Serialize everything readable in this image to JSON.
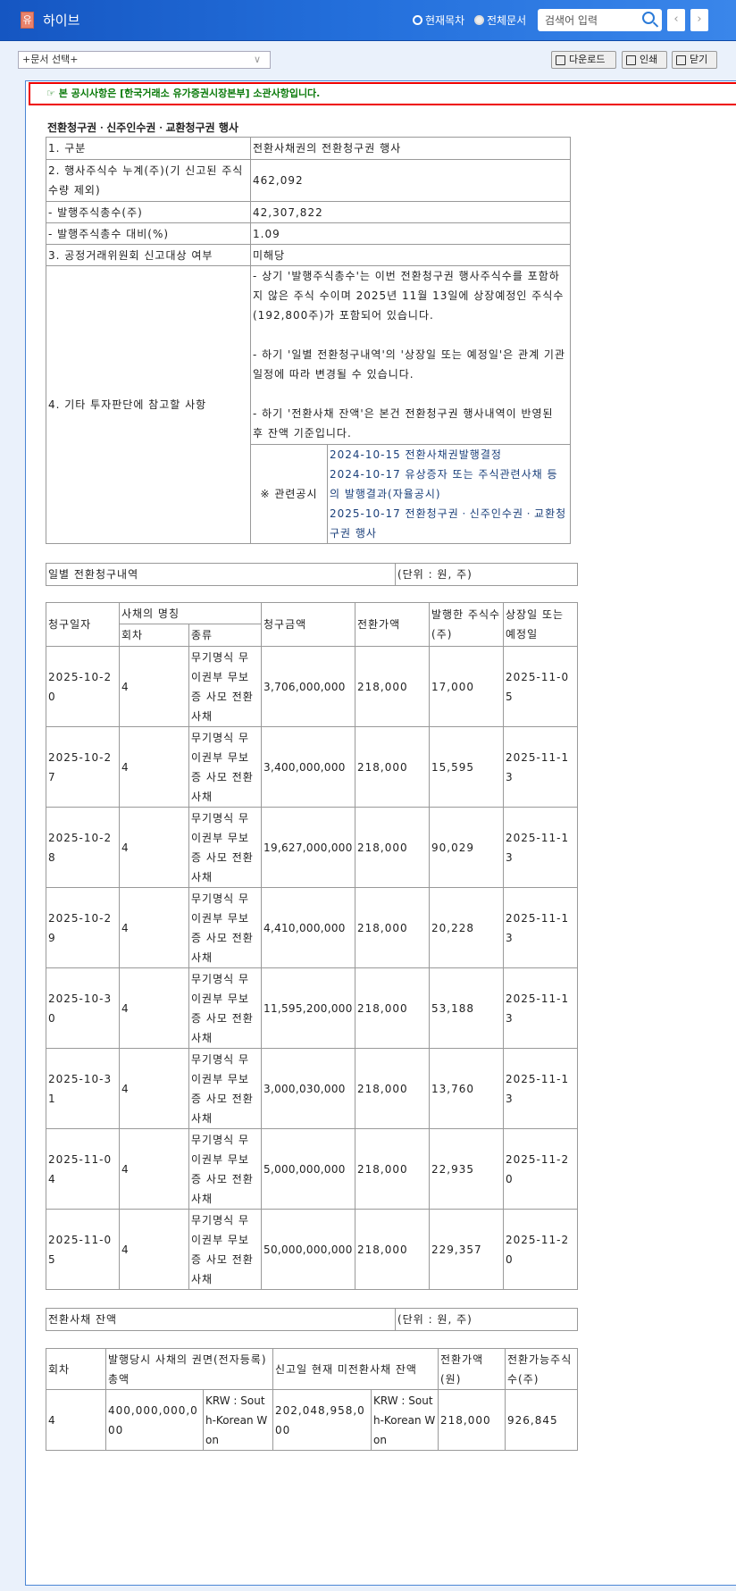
{
  "header": {
    "logo_char": "유",
    "title": "하이브",
    "radio_current": "현재목차",
    "radio_all": "전체문서",
    "search_placeholder": "검색어 입력",
    "prev": "‹",
    "next": "›"
  },
  "toolbar": {
    "doc_select": "+문서 선택+",
    "download": "다운로드",
    "print": "인쇄",
    "close": "닫기"
  },
  "notice": "☞ 본 공시사항은 [한국거래소 유가증권시장본부] 소관사항입니다.",
  "title": "전환청구권ㆍ신주인수권ㆍ교환청구권 행사",
  "summary": {
    "rows": [
      {
        "label": "1. 구분",
        "value": "전환사채권의 전환청구권 행사"
      },
      {
        "label": "2. 행사주식수 누계(주)(기 신고된 주식수량 제외)",
        "value": "462,092"
      },
      {
        "label": "- 발행주식총수(주)",
        "value": "42,307,822"
      },
      {
        "label": "- 발행주식총수 대비(%)",
        "value": "1.09"
      },
      {
        "label": "3. 공정거래위원회 신고대상 여부",
        "value": "미해당"
      }
    ],
    "other_label": "4. 기타 투자판단에 참고할 사항",
    "other_notes": [
      "- 상기 '발행주식총수'는 이번 전환청구권 행사주식수를 포함하지 않은 주식 수이며 2025년 11월 13일에 상장예정인 주식수(192,800주)가 포함되어 있습니다.",
      "- 하기 '일별 전환청구내역'의 '상장일 또는 예정일'은 관계 기관 일정에 따라 변경될 수 있습니다.",
      "- 하기 '전환사채 잔액'은 본건 전환청구권 행사내역이 반영된 후 잔액 기준입니다."
    ],
    "related_label": "※ 관련공시",
    "related": [
      "2024-10-15 전환사채권발행결정",
      "2024-10-17 유상증자 또는 주식관련사채 등의 발행결과(자율공시)",
      "2025-10-17 전환청구권ㆍ신주인수권ㆍ교환청구권 행사"
    ]
  },
  "daily": {
    "caption": "일별 전환청구내역",
    "unit": "(단위 : 원, 주)",
    "headers": {
      "date": "청구일자",
      "bond_name": "사채의 명칭",
      "round": "회차",
      "kind": "종류",
      "amount": "청구금액",
      "price": "전환가액",
      "shares": "발행한 주식수(주)",
      "listing": "상장일 또는 예정일"
    },
    "rows": [
      {
        "date": "2025-10-20",
        "round": "4",
        "kind": "무기명식 무이권부 무보증 사모 전환사채",
        "amount": "3,706,000,000",
        "price": "218,000",
        "shares": "17,000",
        "listing": "2025-11-05"
      },
      {
        "date": "2025-10-27",
        "round": "4",
        "kind": "무기명식 무이권부 무보증 사모 전환사채",
        "amount": "3,400,000,000",
        "price": "218,000",
        "shares": "15,595",
        "listing": "2025-11-13"
      },
      {
        "date": "2025-10-28",
        "round": "4",
        "kind": "무기명식 무이권부 무보증 사모 전환사채",
        "amount": "19,627,000,000",
        "price": "218,000",
        "shares": "90,029",
        "listing": "2025-11-13"
      },
      {
        "date": "2025-10-29",
        "round": "4",
        "kind": "무기명식 무이권부 무보증 사모 전환사채",
        "amount": "4,410,000,000",
        "price": "218,000",
        "shares": "20,228",
        "listing": "2025-11-13"
      },
      {
        "date": "2025-10-30",
        "round": "4",
        "kind": "무기명식 무이권부 무보증 사모 전환사채",
        "amount": "11,595,200,000",
        "price": "218,000",
        "shares": "53,188",
        "listing": "2025-11-13"
      },
      {
        "date": "2025-10-31",
        "round": "4",
        "kind": "무기명식 무이권부 무보증 사모 전환사채",
        "amount": "3,000,030,000",
        "price": "218,000",
        "shares": "13,760",
        "listing": "2025-11-13"
      },
      {
        "date": "2025-11-04",
        "round": "4",
        "kind": "무기명식 무이권부 무보증 사모 전환사채",
        "amount": "5,000,000,000",
        "price": "218,000",
        "shares": "22,935",
        "listing": "2025-11-20"
      },
      {
        "date": "2025-11-05",
        "round": "4",
        "kind": "무기명식 무이권부 무보증 사모 전환사채",
        "amount": "50,000,000,000",
        "price": "218,000",
        "shares": "229,357",
        "listing": "2025-11-20"
      }
    ]
  },
  "balance": {
    "caption": "전환사채 잔액",
    "unit": "(단위 : 원, 주)",
    "headers": {
      "round": "회차",
      "face": "발행당시 사채의 권면(전자등록)총액",
      "remaining": "신고일 현재 미전환사채 잔액",
      "price": "전환가액(원)",
      "shares": "전환가능주식수(주)"
    },
    "row": {
      "round": "4",
      "face": "400,000,000,000",
      "face_cur": "KRW : South-Korean Won",
      "remaining": "202,048,958,000",
      "remaining_cur": "KRW : South-Korean Won",
      "price": "218,000",
      "shares": "926,845"
    }
  }
}
